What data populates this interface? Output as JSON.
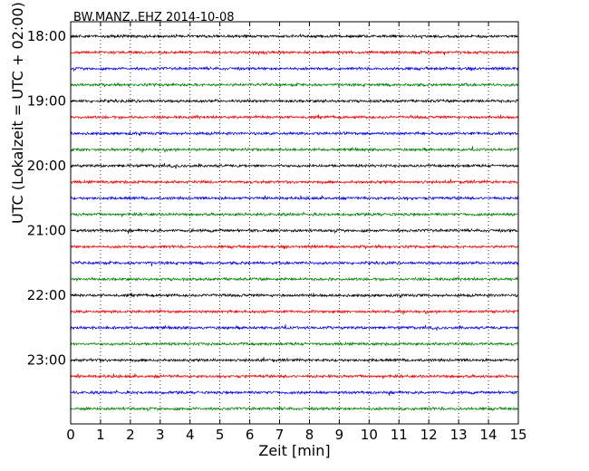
{
  "chart_data": {
    "type": "line",
    "title": "BW.MANZ..EHZ 2014-10-08",
    "xlabel": "Zeit  [min]",
    "ylabel": "UTC (Lokalzeit = UTC + 02:00)",
    "xlim": [
      0,
      15
    ],
    "x_ticks": [
      "0",
      "1",
      "2",
      "3",
      "4",
      "5",
      "6",
      "7",
      "8",
      "9",
      "10",
      "11",
      "12",
      "13",
      "14",
      "15"
    ],
    "y_ticks": [
      "18:00",
      "19:00",
      "20:00",
      "21:00",
      "22:00",
      "23:00"
    ],
    "grid": "vertical-dotted",
    "trace_count": 24,
    "trace_colors": [
      "#000000",
      "#ff0000",
      "#0000ff",
      "#008000"
    ],
    "series": [
      {
        "start": "18:00",
        "color": "#000000"
      },
      {
        "start": "18:15",
        "color": "#ff0000"
      },
      {
        "start": "18:30",
        "color": "#0000ff"
      },
      {
        "start": "18:45",
        "color": "#008000"
      },
      {
        "start": "19:00",
        "color": "#000000"
      },
      {
        "start": "19:15",
        "color": "#ff0000"
      },
      {
        "start": "19:30",
        "color": "#0000ff"
      },
      {
        "start": "19:45",
        "color": "#008000"
      },
      {
        "start": "20:00",
        "color": "#000000"
      },
      {
        "start": "20:15",
        "color": "#ff0000"
      },
      {
        "start": "20:30",
        "color": "#0000ff"
      },
      {
        "start": "20:45",
        "color": "#008000"
      },
      {
        "start": "21:00",
        "color": "#000000"
      },
      {
        "start": "21:15",
        "color": "#ff0000"
      },
      {
        "start": "21:30",
        "color": "#0000ff"
      },
      {
        "start": "21:45",
        "color": "#008000"
      },
      {
        "start": "22:00",
        "color": "#000000"
      },
      {
        "start": "22:15",
        "color": "#ff0000"
      },
      {
        "start": "22:30",
        "color": "#0000ff"
      },
      {
        "start": "22:45",
        "color": "#008000"
      },
      {
        "start": "23:00",
        "color": "#000000"
      },
      {
        "start": "23:15",
        "color": "#ff0000"
      },
      {
        "start": "23:30",
        "color": "#0000ff"
      },
      {
        "start": "23:45",
        "color": "#008000"
      }
    ]
  }
}
